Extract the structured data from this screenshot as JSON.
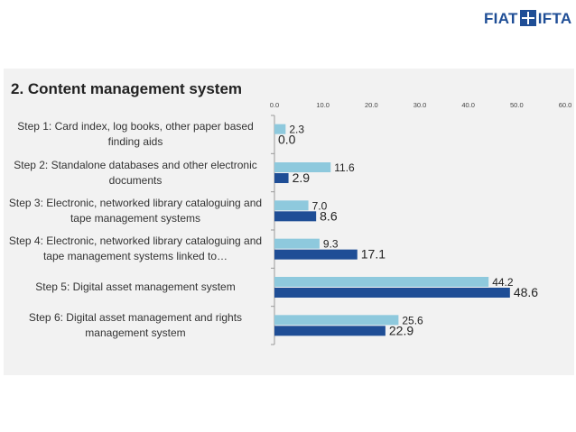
{
  "brand": {
    "logo_text": "FIAT",
    "logo_text2": "IFTA",
    "colors": {
      "primary": "#1f4e96"
    }
  },
  "chart_data": {
    "type": "bar",
    "orientation": "horizontal",
    "title": "2. Content management system",
    "categories": [
      "Step 1: Card index, log books, other paper based finding aids",
      "Step 2: Standalone databases and  other electronic documents",
      "Step 3: Electronic, networked library cataloguing and tape management systems",
      "Step 4: Electronic, networked library cataloguing and tape management systems linked to…",
      "Step 5: Digital asset management system",
      "Step 6: Digital asset management and rights management system"
    ],
    "series": [
      {
        "values": [
          2.3,
          11.6,
          7.0,
          9.3,
          44.2,
          25.6
        ],
        "color": "#8ec9dd"
      },
      {
        "values": [
          0.0,
          2.9,
          8.6,
          17.1,
          48.6,
          22.9
        ],
        "color": "#1f4e96"
      }
    ],
    "xlim": [
      0,
      60
    ],
    "xticks": [
      "0.0",
      "10.0",
      "20.0",
      "30.0",
      "40.0",
      "50.0",
      "60.0"
    ],
    "axis_position": "top",
    "grid": false,
    "legend": "none"
  }
}
